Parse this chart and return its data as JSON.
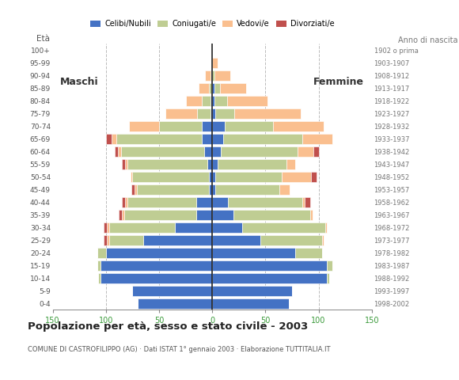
{
  "age_groups_bottom_to_top": [
    "0-4",
    "5-9",
    "10-14",
    "15-19",
    "20-24",
    "25-29",
    "30-34",
    "35-39",
    "40-44",
    "45-49",
    "50-54",
    "55-59",
    "60-64",
    "65-69",
    "70-74",
    "75-79",
    "80-84",
    "85-89",
    "90-94",
    "95-99",
    "100+"
  ],
  "birth_years_bottom_to_top": [
    "1998-2002",
    "1993-1997",
    "1988-1992",
    "1983-1987",
    "1978-1982",
    "1973-1977",
    "1968-1972",
    "1963-1967",
    "1958-1962",
    "1953-1957",
    "1948-1952",
    "1943-1947",
    "1938-1942",
    "1933-1937",
    "1928-1932",
    "1923-1927",
    "1918-1922",
    "1913-1917",
    "1908-1912",
    "1903-1907",
    "1902 o prima"
  ],
  "males_cn": [
    70,
    75,
    105,
    105,
    100,
    65,
    35,
    15,
    15,
    3,
    3,
    5,
    8,
    10,
    10,
    2,
    2,
    0,
    0,
    0,
    0
  ],
  "males_co": [
    0,
    0,
    2,
    3,
    8,
    32,
    62,
    68,
    65,
    68,
    72,
    75,
    78,
    80,
    40,
    12,
    8,
    3,
    2,
    0,
    0
  ],
  "males_ve": [
    0,
    0,
    0,
    0,
    0,
    2,
    2,
    2,
    2,
    2,
    2,
    2,
    3,
    5,
    28,
    30,
    15,
    10,
    5,
    0,
    0
  ],
  "males_di": [
    0,
    0,
    0,
    0,
    0,
    3,
    3,
    3,
    3,
    3,
    0,
    3,
    3,
    5,
    0,
    0,
    0,
    0,
    0,
    0,
    0
  ],
  "females_cn": [
    72,
    75,
    108,
    108,
    78,
    45,
    28,
    20,
    15,
    3,
    3,
    5,
    8,
    10,
    12,
    3,
    2,
    2,
    0,
    0,
    0
  ],
  "females_co": [
    0,
    0,
    2,
    5,
    25,
    58,
    78,
    72,
    70,
    60,
    62,
    65,
    72,
    75,
    45,
    18,
    12,
    5,
    2,
    0,
    0
  ],
  "females_ve": [
    0,
    0,
    0,
    0,
    0,
    2,
    2,
    2,
    2,
    10,
    28,
    8,
    15,
    28,
    48,
    62,
    38,
    25,
    15,
    5,
    0
  ],
  "females_di": [
    0,
    0,
    0,
    0,
    0,
    0,
    0,
    0,
    5,
    0,
    5,
    0,
    5,
    0,
    0,
    0,
    0,
    0,
    0,
    0,
    0
  ],
  "color_cn": "#4472C4",
  "color_co": "#BFCD93",
  "color_ve": "#FABF8F",
  "color_di": "#C0504D",
  "xlim": 150,
  "title": "Popolazione per età, sesso e stato civile - 2003",
  "subtitle": "COMUNE DI CASTROFILIPPO (AG) · Dati ISTAT 1° gennaio 2003 · Elaborazione TUTTITALIA.IT",
  "label_maschi": "Maschi",
  "label_femmine": "Femmine",
  "label_eta": "Età",
  "label_anno": "Anno di nascita",
  "legend_labels": [
    "Celibi/Nubili",
    "Coniugati/e",
    "Vedovi/e",
    "Divorziati/e"
  ],
  "bg_color": "#ffffff",
  "grid_color": "#aaaaaa"
}
